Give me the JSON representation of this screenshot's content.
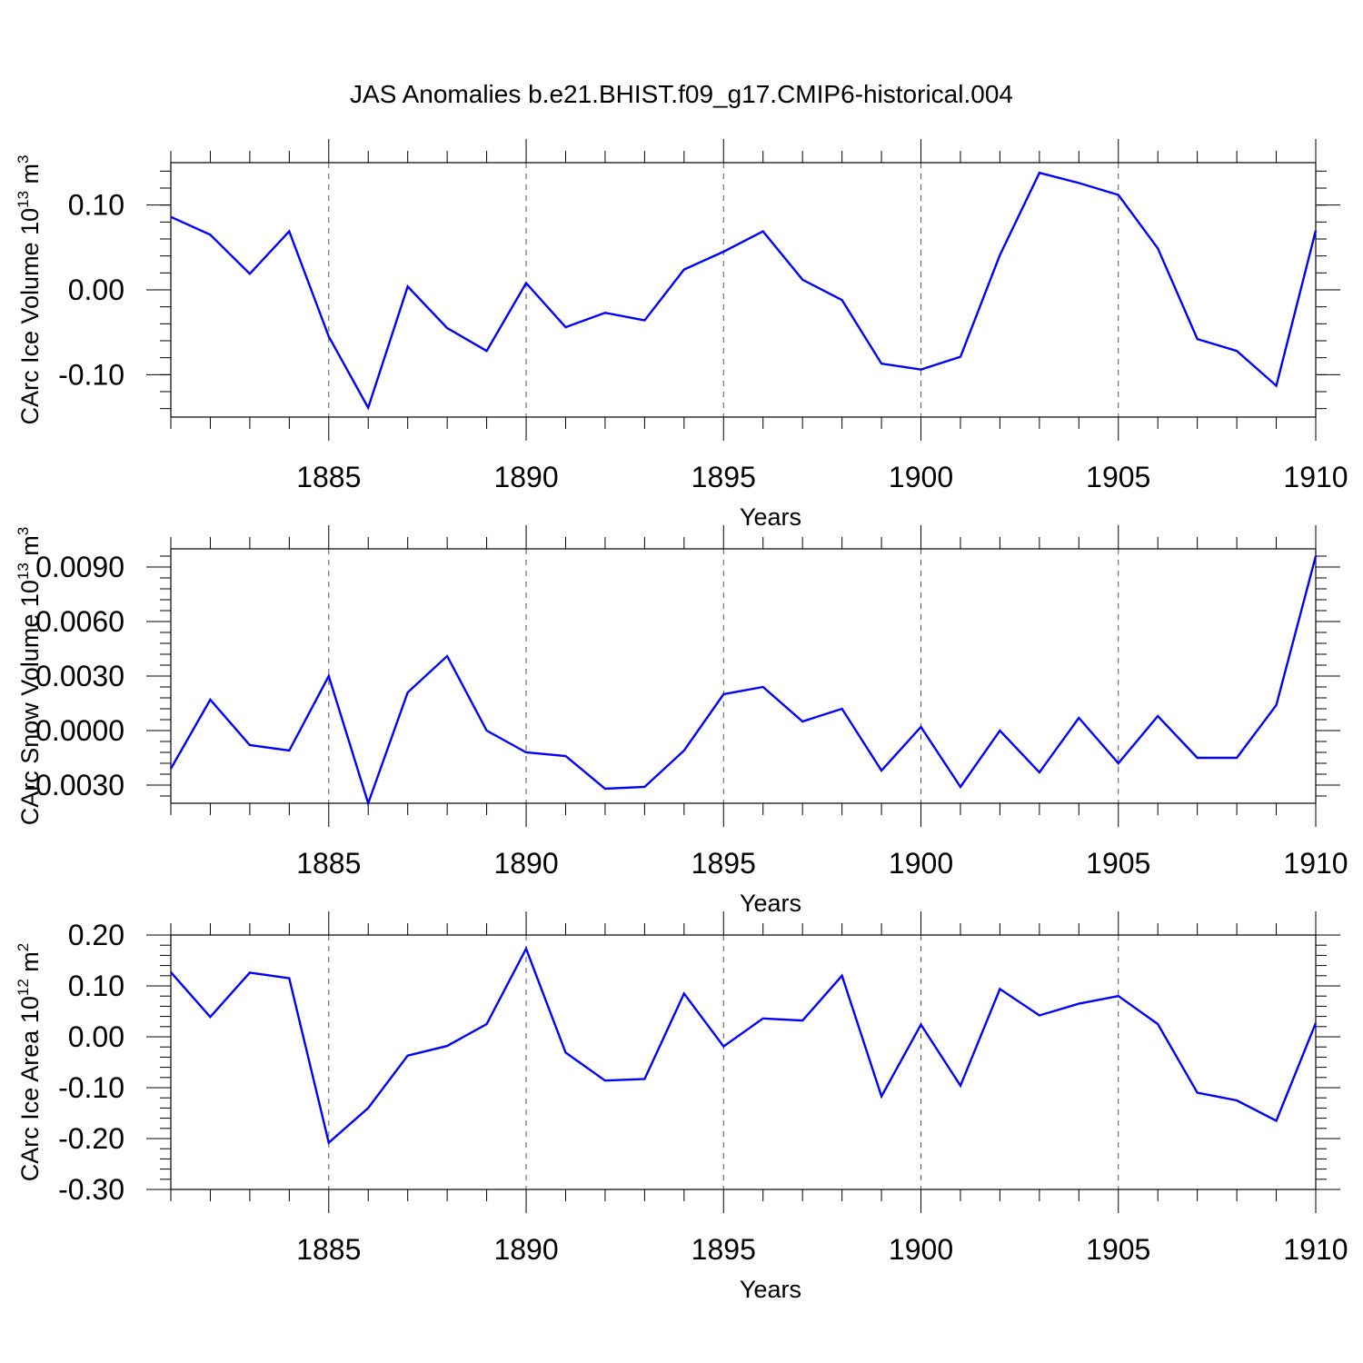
{
  "title": "JAS Anomalies b.e21.BHIST.f09_g17.CMIP6-historical.004",
  "colors": {
    "line": "#0000ff",
    "axis": "#000000",
    "grid": "#555555"
  },
  "chart_data": [
    {
      "type": "line",
      "name": "ice-volume",
      "ylabel_main": "CArc Ice Volume 10",
      "ylabel_exp": "13",
      "ylabel_unit": " m",
      "ylabel_unit_exp": "3",
      "xlabel": "Years",
      "xlim": [
        1881,
        1910
      ],
      "ylim": [
        -0.15,
        0.15
      ],
      "ytick_values": [
        -0.1,
        0.0,
        0.1
      ],
      "ytick_labels": [
        "-0.10",
        "0.00",
        "0.10"
      ],
      "xticks": [
        1885,
        1890,
        1895,
        1900,
        1905,
        1910
      ],
      "x": [
        1881,
        1882,
        1883,
        1884,
        1885,
        1886,
        1887,
        1888,
        1889,
        1890,
        1891,
        1892,
        1893,
        1894,
        1895,
        1896,
        1897,
        1898,
        1899,
        1900,
        1901,
        1902,
        1903,
        1904,
        1905,
        1906,
        1907,
        1908,
        1909,
        1910
      ],
      "values": [
        0.086,
        0.065,
        0.019,
        0.069,
        -0.055,
        -0.139,
        0.004,
        -0.045,
        -0.072,
        0.008,
        -0.044,
        -0.027,
        -0.036,
        0.024,
        0.045,
        0.069,
        0.012,
        -0.012,
        -0.087,
        -0.094,
        -0.079,
        0.041,
        0.138,
        0.126,
        0.112,
        0.049,
        -0.058,
        -0.072,
        -0.113,
        0.07
      ]
    },
    {
      "type": "line",
      "name": "snow-volume",
      "ylabel_main": "CArc Snow Volume 10",
      "ylabel_exp": "13",
      "ylabel_unit": " m",
      "ylabel_unit_exp": "3",
      "xlabel": "Years",
      "xlim": [
        1881,
        1910
      ],
      "ylim": [
        -0.004,
        0.01
      ],
      "ytick_values": [
        -0.003,
        0.0,
        0.003,
        0.006,
        0.009
      ],
      "ytick_labels": [
        "-0.0030",
        "0.0000",
        "0.0030",
        "0.0060",
        "0.0090"
      ],
      "xticks": [
        1885,
        1890,
        1895,
        1900,
        1905,
        1910
      ],
      "x": [
        1881,
        1882,
        1883,
        1884,
        1885,
        1886,
        1887,
        1888,
        1889,
        1890,
        1891,
        1892,
        1893,
        1894,
        1895,
        1896,
        1897,
        1898,
        1899,
        1900,
        1901,
        1902,
        1903,
        1904,
        1905,
        1906,
        1907,
        1908,
        1909,
        1910
      ],
      "values": [
        -0.0021,
        0.0017,
        -0.0008,
        -0.0011,
        0.003,
        -0.004,
        0.0021,
        0.0041,
        0.0,
        -0.0012,
        -0.0014,
        -0.0032,
        -0.0031,
        -0.0011,
        0.002,
        0.0024,
        0.0005,
        0.0012,
        -0.0022,
        0.0002,
        -0.0031,
        0.0,
        -0.0023,
        0.0007,
        -0.0018,
        0.0008,
        -0.0015,
        -0.0015,
        0.0014,
        0.0096
      ]
    },
    {
      "type": "line",
      "name": "ice-area",
      "ylabel_main": "CArc Ice Area 10",
      "ylabel_exp": "12",
      "ylabel_unit": " m",
      "ylabel_unit_exp": "2",
      "xlabel": "Years",
      "xlim": [
        1881,
        1910
      ],
      "ylim": [
        -0.3,
        0.2
      ],
      "ytick_values": [
        -0.3,
        -0.2,
        -0.1,
        0.0,
        0.1,
        0.2
      ],
      "ytick_labels": [
        "-0.30",
        "-0.20",
        "-0.10",
        "0.00",
        "0.10",
        "0.20"
      ],
      "xticks": [
        1885,
        1890,
        1895,
        1900,
        1905,
        1910
      ],
      "x": [
        1881,
        1882,
        1883,
        1884,
        1885,
        1886,
        1887,
        1888,
        1889,
        1890,
        1891,
        1892,
        1893,
        1894,
        1895,
        1896,
        1897,
        1898,
        1899,
        1900,
        1901,
        1902,
        1903,
        1904,
        1905,
        1906,
        1907,
        1908,
        1909,
        1910
      ],
      "values": [
        0.127,
        0.039,
        0.126,
        0.115,
        -0.208,
        -0.14,
        -0.037,
        -0.018,
        0.025,
        0.173,
        -0.031,
        -0.086,
        -0.083,
        0.085,
        -0.019,
        0.036,
        0.032,
        0.12,
        -0.117,
        0.024,
        -0.096,
        0.094,
        0.042,
        0.065,
        0.08,
        0.025,
        -0.11,
        -0.125,
        -0.165,
        0.027
      ]
    }
  ]
}
